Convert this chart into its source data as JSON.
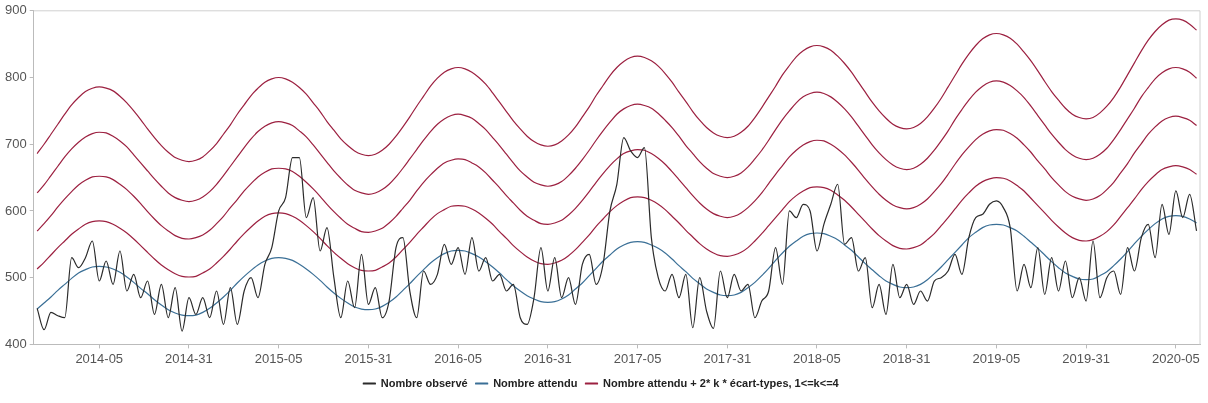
{
  "chart_data": {
    "type": "line",
    "categories": [
      null,
      null,
      null,
      null,
      null,
      null,
      null,
      null,
      null,
      "2014-05",
      null,
      null,
      null,
      null,
      null,
      null,
      null,
      null,
      null,
      null,
      null,
      null,
      "2014-31",
      null,
      null,
      null,
      null,
      null,
      null,
      null,
      null,
      null,
      null,
      null,
      null,
      "2015-05",
      null,
      null,
      null,
      null,
      null,
      null,
      null,
      null,
      null,
      null,
      null,
      null,
      "2015-31",
      null,
      null,
      null,
      null,
      null,
      null,
      null,
      null,
      null,
      null,
      null,
      null,
      "2016-05",
      null,
      null,
      null,
      null,
      null,
      null,
      null,
      null,
      null,
      null,
      null,
      null,
      "2016-31",
      null,
      null,
      null,
      null,
      null,
      null,
      null,
      null,
      null,
      null,
      null,
      null,
      "2017-05",
      null,
      null,
      null,
      null,
      null,
      null,
      null,
      null,
      null,
      null,
      null,
      null,
      "2017-31",
      null,
      null,
      null,
      null,
      null,
      null,
      null,
      null,
      null,
      null,
      null,
      null,
      "2018-05",
      null,
      null,
      null,
      null,
      null,
      null,
      null,
      null,
      null,
      null,
      null,
      null,
      "2018-31",
      null,
      null,
      null,
      null,
      null,
      null,
      null,
      null,
      null,
      null,
      null,
      null,
      "2019-05",
      null,
      null,
      null,
      null,
      null,
      null,
      null,
      null,
      null,
      null,
      null,
      null,
      "2019-31",
      null,
      null,
      null,
      null,
      null,
      null,
      null,
      null,
      null,
      null,
      null,
      null,
      "2020-05",
      null,
      null,
      null
    ],
    "ylim": [
      400,
      900
    ],
    "yticks": [
      400,
      500,
      600,
      700,
      800,
      900
    ],
    "grid": false,
    "legend": "bottom",
    "marker": "none",
    "line_style": "solid",
    "series": [
      {
        "name": "Nombre observé",
        "color": "#2b2b2b",
        "values": [
          454,
          422,
          448,
          443,
          440,
          530,
          515,
          530,
          555,
          495,
          525,
          490,
          540,
          480,
          505,
          470,
          495,
          445,
          490,
          440,
          485,
          420,
          470,
          445,
          470,
          440,
          480,
          430,
          485,
          430,
          480,
          500,
          470,
          520,
          545,
          600,
          620,
          680,
          680,
          590,
          620,
          540,
          575,
          500,
          440,
          495,
          455,
          535,
          460,
          485,
          440,
          465,
          545,
          560,
          480,
          440,
          510,
          490,
          505,
          550,
          520,
          545,
          505,
          560,
          510,
          530,
          495,
          505,
          480,
          490,
          440,
          430,
          470,
          545,
          480,
          530,
          470,
          500,
          460,
          520,
          535,
          490,
          520,
          600,
          640,
          710,
          690,
          680,
          695,
          560,
          500,
          480,
          505,
          470,
          505,
          425,
          500,
          450,
          424,
          510,
          470,
          505,
          480,
          490,
          440,
          465,
          480,
          545,
          490,
          600,
          590,
          610,
          600,
          540,
          580,
          610,
          640,
          550,
          560,
          510,
          530,
          455,
          490,
          445,
          520,
          470,
          490,
          460,
          480,
          465,
          495,
          500,
          510,
          535,
          505,
          560,
          590,
          595,
          610,
          615,
          605,
          575,
          480,
          520,
          485,
          545,
          475,
          530,
          480,
          525,
          470,
          500,
          465,
          555,
          470,
          500,
          510,
          475,
          545,
          510,
          560,
          580,
          530,
          610,
          565,
          630,
          590,
          625,
          570
        ]
      },
      {
        "name": "Nombre attendu",
        "color": "#3a6f96",
        "values": [
          453,
          462,
          471,
          481,
          490,
          499,
          507,
          512,
          516,
          517,
          516,
          513,
          508,
          501,
          493,
          484,
          476,
          467,
          459,
          452,
          447,
          444,
          443,
          444,
          448,
          454,
          462,
          471,
          481,
          492,
          502,
          511,
          519,
          525,
          529,
          530,
          529,
          526,
          520,
          513,
          505,
          496,
          486,
          477,
          469,
          462,
          456,
          453,
          452,
          453,
          457,
          463,
          471,
          481,
          491,
          502,
          512,
          522,
          530,
          536,
          540,
          541,
          540,
          536,
          531,
          524,
          516,
          507,
          497,
          488,
          480,
          473,
          468,
          464,
          463,
          464,
          468,
          474,
          483,
          492,
          503,
          514,
          525,
          534,
          543,
          549,
          553,
          554,
          553,
          549,
          544,
          537,
          528,
          518,
          509,
          499,
          491,
          483,
          478,
          474,
          473,
          474,
          478,
          485,
          493,
          503,
          514,
          526,
          537,
          547,
          555,
          562,
          566,
          567,
          566,
          562,
          557,
          549,
          541,
          531,
          521,
          512,
          503,
          495,
          490,
          486,
          485,
          486,
          490,
          497,
          506,
          516,
          527,
          538,
          549,
          560,
          568,
          575,
          579,
          580,
          579,
          575,
          570,
          562,
          553,
          544,
          534,
          524,
          515,
          507,
          502,
          498,
          497,
          498,
          503,
          509,
          518,
          528,
          539,
          551,
          562,
          572,
          581,
          588,
          592,
          593,
          592,
          588,
          582
        ]
      },
      {
        "name": "Nombre attendu + 2* k * écart-types, 1<=k<=4",
        "color": "#9c2040",
        "values": [
          513,
          523,
          534,
          545,
          555,
          565,
          573,
          580,
          584,
          585,
          584,
          580,
          574,
          567,
          558,
          548,
          538,
          528,
          519,
          512,
          506,
          502,
          501,
          502,
          507,
          513,
          522,
          532,
          543,
          555,
          566,
          576,
          585,
          592,
          596,
          597,
          596,
          592,
          586,
          578,
          569,
          559,
          548,
          538,
          529,
          521,
          515,
          511,
          510,
          511,
          516,
          522,
          531,
          542,
          553,
          565,
          576,
          587,
          596,
          602,
          607,
          608,
          607,
          603,
          597,
          589,
          580,
          569,
          559,
          548,
          539,
          531,
          525,
          521,
          520,
          522,
          526,
          533,
          542,
          553,
          564,
          577,
          588,
          599,
          608,
          615,
          620,
          621,
          620,
          616,
          610,
          602,
          592,
          582,
          571,
          561,
          551,
          543,
          537,
          533,
          532,
          534,
          538,
          545,
          555,
          566,
          578,
          590,
          602,
          614,
          623,
          630,
          635,
          636,
          635,
          631,
          624,
          616,
          606,
          595,
          584,
          573,
          563,
          555,
          548,
          544,
          543,
          545,
          549,
          557,
          566,
          578,
          590,
          603,
          616,
          627,
          637,
          644,
          648,
          650,
          649,
          645,
          638,
          630,
          619,
          608,
          597,
          586,
          576,
          567,
          560,
          556,
          555,
          557,
          562,
          569,
          579,
          592,
          605,
          618,
          632,
          644,
          654,
          662,
          666,
          668,
          666,
          662,
          655
        ]
      },
      {
        "color": "#9c2040",
        "values": [
          570,
          581,
          593,
          606,
          618,
          629,
          639,
          646,
          651,
          652,
          651,
          647,
          640,
          632,
          622,
          611,
          599,
          588,
          578,
          570,
          563,
          559,
          558,
          560,
          564,
          571,
          581,
          592,
          605,
          617,
          630,
          641,
          651,
          658,
          663,
          664,
          663,
          659,
          652,
          643,
          633,
          622,
          610,
          599,
          589,
          580,
          574,
          569,
          568,
          570,
          574,
          582,
          592,
          604,
          616,
          630,
          643,
          654,
          664,
          672,
          676,
          678,
          677,
          672,
          666,
          657,
          646,
          635,
          623,
          612,
          601,
          592,
          586,
          581,
          580,
          582,
          586,
          594,
          604,
          616,
          629,
          643,
          656,
          668,
          678,
          686,
          690,
          692,
          691,
          686,
          679,
          670,
          659,
          647,
          635,
          623,
          612,
          603,
          596,
          592,
          590,
          592,
          597,
          605,
          615,
          627,
          641,
          655,
          668,
          681,
          691,
          699,
          704,
          706,
          705,
          700,
          693,
          684,
          673,
          661,
          648,
          636,
          625,
          616,
          609,
          605,
          603,
          605,
          610,
          618,
          629,
          641,
          655,
          670,
          684,
          696,
          707,
          715,
          720,
          722,
          721,
          716,
          709,
          699,
          688,
          675,
          663,
          650,
          639,
          629,
          622,
          618,
          616,
          618,
          623,
          632,
          643,
          657,
          671,
          687,
          701,
          715,
          726,
          735,
          740,
          742,
          740,
          736,
          728
        ]
      },
      {
        "color": "#9c2040",
        "values": [
          627,
          639,
          653,
          667,
          681,
          693,
          703,
          711,
          716,
          718,
          717,
          712,
          705,
          696,
          684,
          672,
          660,
          648,
          637,
          627,
          620,
          616,
          614,
          616,
          621,
          629,
          640,
          653,
          667,
          681,
          695,
          708,
          719,
          727,
          732,
          734,
          732,
          728,
          720,
          711,
          699,
          686,
          673,
          660,
          649,
          639,
          631,
          627,
          625,
          627,
          632,
          640,
          651,
          664,
          678,
          692,
          706,
          719,
          730,
          738,
          743,
          745,
          743,
          739,
          731,
          722,
          710,
          698,
          685,
          672,
          660,
          651,
          643,
          639,
          637,
          639,
          644,
          653,
          664,
          677,
          691,
          706,
          720,
          733,
          745,
          753,
          758,
          760,
          758,
          754,
          746,
          736,
          725,
          712,
          698,
          686,
          674,
          664,
          656,
          652,
          650,
          652,
          657,
          666,
          678,
          691,
          706,
          722,
          737,
          750,
          762,
          771,
          776,
          778,
          776,
          771,
          763,
          753,
          741,
          727,
          713,
          699,
          687,
          677,
          669,
          664,
          662,
          664,
          670,
          679,
          691,
          705,
          720,
          737,
          752,
          766,
          778,
          787,
          793,
          795,
          793,
          788,
          780,
          770,
          757,
          743,
          729,
          715,
          703,
          692,
          684,
          679,
          677,
          679,
          685,
          694,
          707,
          722,
          738,
          754,
          771,
          785,
          798,
          807,
          813,
          815,
          813,
          808,
          799
        ]
      },
      {
        "color": "#9c2040",
        "values": [
          686,
          700,
          715,
          730,
          745,
          759,
          770,
          779,
          784,
          786,
          784,
          780,
          772,
          762,
          750,
          737,
          723,
          710,
          698,
          688,
          680,
          676,
          674,
          676,
          681,
          690,
          701,
          715,
          729,
          745,
          759,
          773,
          784,
          793,
          798,
          800,
          798,
          793,
          785,
          775,
          762,
          749,
          734,
          721,
          708,
          698,
          690,
          685,
          683,
          685,
          691,
          700,
          712,
          726,
          741,
          757,
          772,
          787,
          799,
          808,
          813,
          815,
          813,
          808,
          800,
          790,
          777,
          763,
          749,
          735,
          723,
          712,
          704,
          699,
          697,
          699,
          705,
          714,
          726,
          741,
          756,
          773,
          788,
          803,
          815,
          824,
          830,
          832,
          830,
          825,
          817,
          806,
          793,
          778,
          764,
          749,
          736,
          725,
          717,
          712,
          710,
          712,
          718,
          727,
          740,
          755,
          771,
          787,
          804,
          818,
          831,
          840,
          846,
          848,
          846,
          841,
          832,
          821,
          808,
          793,
          778,
          763,
          750,
          739,
          730,
          725,
          723,
          725,
          731,
          741,
          754,
          769,
          786,
          803,
          820,
          835,
          848,
          858,
          864,
          866,
          864,
          859,
          850,
          838,
          825,
          810,
          794,
          779,
          766,
          754,
          745,
          740,
          738,
          740,
          747,
          757,
          770,
          786,
          804,
          822,
          840,
          856,
          869,
          879,
          886,
          888,
          886,
          880,
          871
        ]
      }
    ]
  }
}
